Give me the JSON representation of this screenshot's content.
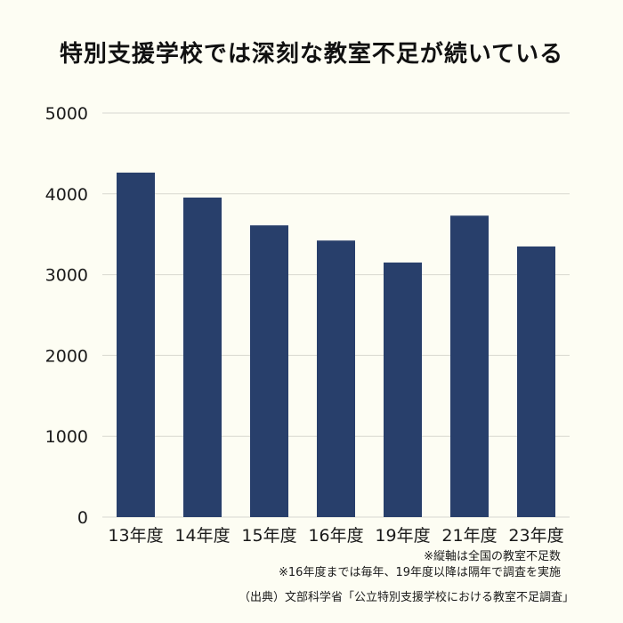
{
  "title": "特別支援学校では深刻な教室不足が続いている",
  "notes": [
    "※縦軸は全国の教室不足数",
    "※16年度までは毎年、19年度以降は隔年で調査を実施"
  ],
  "source": "（出典）文部科学省「公立特別支援学校における教室不足調査」",
  "colors": {
    "bar": "#283f6b",
    "grid": "#d8d8d0",
    "axis_text": "#1a1a1a",
    "background": "#fdfdf3"
  },
  "chart_data": {
    "type": "bar",
    "categories": [
      "13年度",
      "14年度",
      "15年度",
      "16年度",
      "19年度",
      "21年度",
      "23年度"
    ],
    "values": [
      4263,
      3954,
      3610,
      3422,
      3150,
      3730,
      3349
    ],
    "y_ticks": [
      "0",
      "1000",
      "2000",
      "3000",
      "4000",
      "5000"
    ],
    "ylim": [
      0,
      5000
    ],
    "grid": true,
    "xlabel": "",
    "ylabel": ""
  }
}
